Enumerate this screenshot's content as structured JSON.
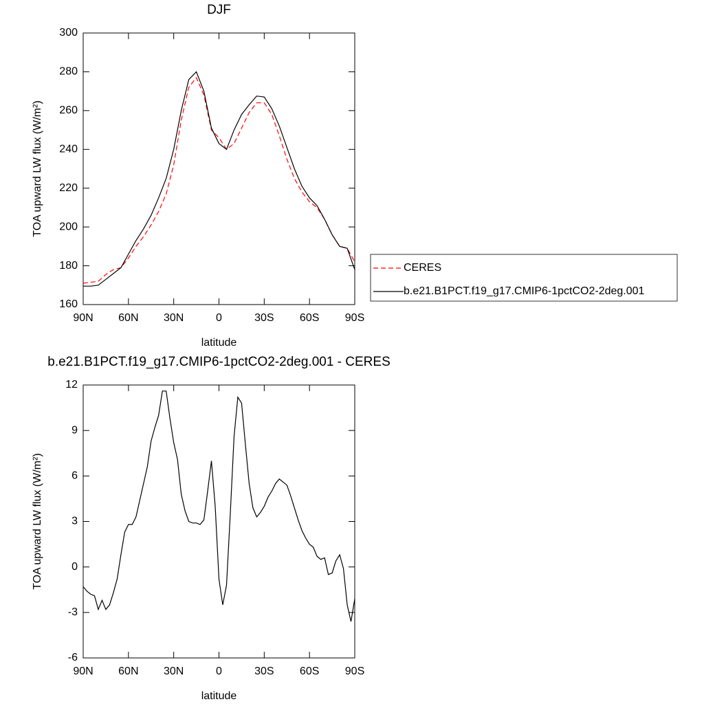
{
  "chart_data": [
    {
      "type": "line",
      "title": "DJF",
      "xlabel": "latitude",
      "ylabel": "TOA upward LW flux (W/m²)",
      "x": [
        90,
        85,
        80,
        75,
        70,
        65,
        60,
        55,
        50,
        45,
        40,
        35,
        30,
        25,
        20,
        15,
        10,
        5,
        0,
        -5,
        -10,
        -15,
        -20,
        -25,
        -30,
        -35,
        -40,
        -45,
        -50,
        -55,
        -60,
        -65,
        -70,
        -75,
        -80,
        -85,
        -90
      ],
      "series": [
        {
          "name": "CERES",
          "color": "#ff0000",
          "linestyle": "dashed",
          "values": [
            171,
            171.5,
            172,
            175.5,
            178,
            179,
            184,
            190,
            195,
            201,
            208,
            217,
            232,
            255,
            272,
            277,
            268,
            250,
            246,
            240,
            243,
            251,
            259,
            264,
            264,
            258,
            247,
            235,
            225,
            218,
            213,
            210,
            204,
            196,
            190,
            189,
            182
          ]
        },
        {
          "name": "b.e21.B1PCT.f19_g17.CMIP6-1pctCO2-2deg.001",
          "color": "#000000",
          "linestyle": "solid",
          "values": [
            169.5,
            169.5,
            170,
            173,
            176,
            179,
            186,
            193,
            199,
            206,
            215,
            225,
            240,
            260,
            276,
            280,
            270,
            251,
            243,
            240,
            250,
            258,
            263,
            267.5,
            267,
            261,
            252,
            241,
            230,
            221,
            215,
            211,
            204,
            196,
            190,
            189,
            178
          ]
        }
      ],
      "xlim": [
        90,
        -90
      ],
      "xticks": [
        {
          "value": 90,
          "label": "90N"
        },
        {
          "value": 60,
          "label": "60N"
        },
        {
          "value": 30,
          "label": "30N"
        },
        0,
        {
          "value": -30,
          "label": "30S"
        },
        {
          "value": -60,
          "label": "60S"
        },
        {
          "value": -90,
          "label": "90S"
        }
      ],
      "ylim": [
        160,
        300
      ],
      "yticks": [
        160,
        180,
        200,
        220,
        240,
        260,
        280,
        300
      ],
      "legend": "right"
    },
    {
      "type": "line",
      "title": "b.e21.B1PCT.f19_g17.CMIP6-1pctCO2-2deg.001 - CERES",
      "xlabel": "latitude",
      "ylabel": "TOA upward LW flux (W/m²)",
      "x": [
        90,
        87.5,
        85,
        82.5,
        80,
        77.5,
        75,
        72.5,
        70,
        67.5,
        65,
        62.5,
        60,
        57.5,
        55,
        52.5,
        50,
        47.5,
        45,
        42.5,
        40,
        37.5,
        35,
        32.5,
        30,
        27.5,
        25,
        22.5,
        20,
        17.5,
        15,
        12.5,
        10,
        7.5,
        5,
        2.5,
        0,
        -2.5,
        -5,
        -7.5,
        -10,
        -12.5,
        -15,
        -17.5,
        -20,
        -22.5,
        -25,
        -27.5,
        -30,
        -32.5,
        -35,
        -37.5,
        -40,
        -42.5,
        -45,
        -47.5,
        -50,
        -52.5,
        -55,
        -57.5,
        -60,
        -62.5,
        -65,
        -67.5,
        -70,
        -72.5,
        -75,
        -77.5,
        -80,
        -82.5,
        -85,
        -87.5,
        -90
      ],
      "color": "#000000",
      "values": [
        -1.3,
        -1.6,
        -1.8,
        -1.9,
        -2.8,
        -2.2,
        -2.8,
        -2.5,
        -1.7,
        -0.8,
        0.8,
        2.3,
        2.8,
        2.8,
        3.3,
        4.4,
        5.5,
        6.6,
        8.3,
        9.2,
        10.0,
        11.6,
        11.6,
        9.8,
        8.2,
        7.1,
        4.8,
        3.7,
        3.0,
        2.9,
        2.9,
        2.8,
        3.1,
        5.0,
        7.0,
        4.0,
        -0.8,
        -2.5,
        -1.2,
        3.5,
        8.6,
        11.2,
        10.8,
        8.1,
        5.5,
        3.9,
        3.3,
        3.6,
        4.0,
        4.6,
        5.0,
        5.5,
        5.8,
        5.6,
        5.4,
        4.7,
        3.9,
        3.1,
        2.4,
        1.9,
        1.5,
        1.3,
        0.7,
        0.5,
        0.6,
        -0.5,
        -0.4,
        0.4,
        0.8,
        -0.1,
        -2.5,
        -3.6,
        -2.1
      ],
      "xlim": [
        90,
        -90
      ],
      "xticks": [
        {
          "value": 90,
          "label": "90N"
        },
        {
          "value": 60,
          "label": "60N"
        },
        {
          "value": 30,
          "label": "30N"
        },
        0,
        {
          "value": -30,
          "label": "30S"
        },
        {
          "value": -60,
          "label": "60S"
        },
        {
          "value": -90,
          "label": "90S"
        }
      ],
      "ylim": [
        -6,
        12
      ],
      "yticks": [
        -6,
        -3,
        0,
        3,
        6,
        9,
        12
      ]
    }
  ]
}
